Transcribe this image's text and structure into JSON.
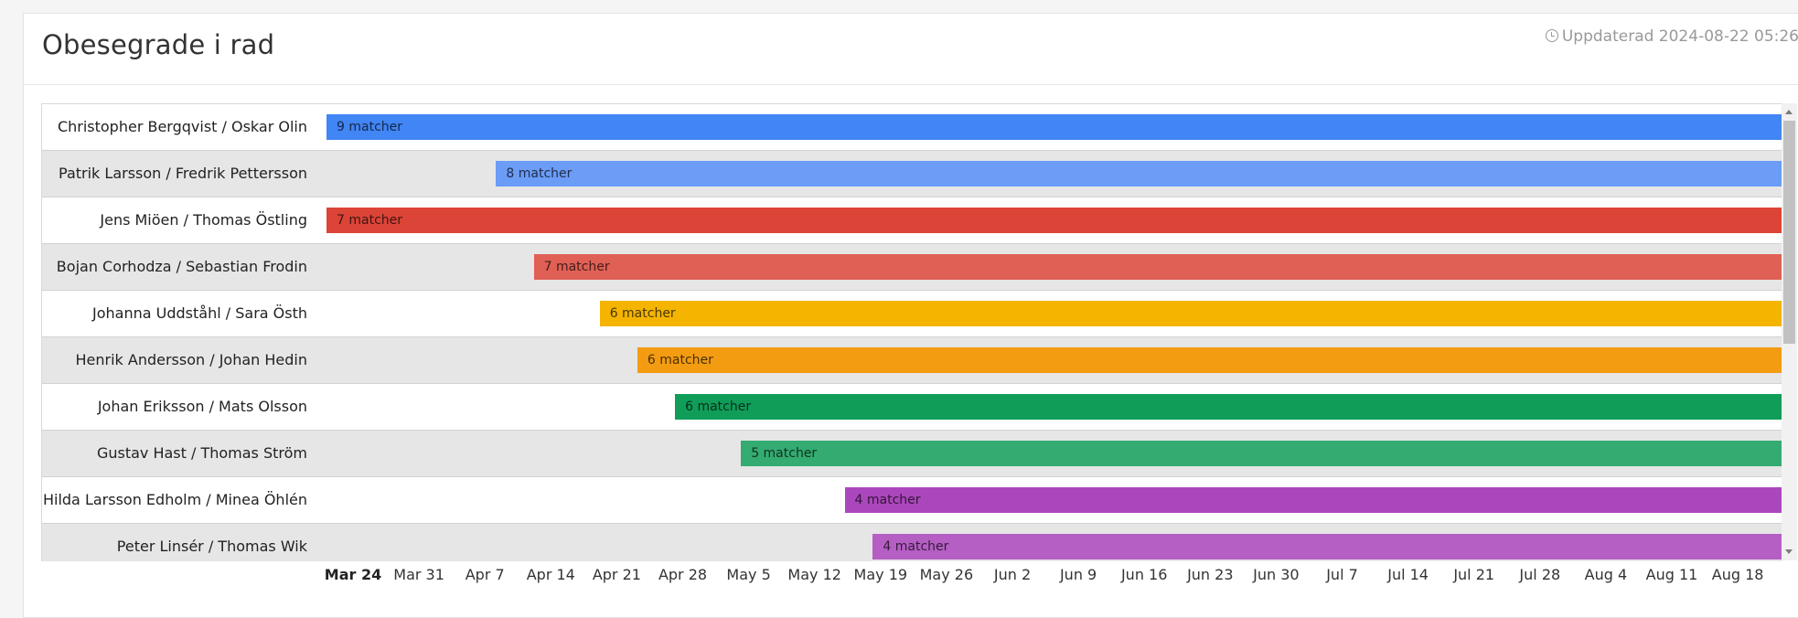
{
  "header": {
    "title": "Obesegrade i rad",
    "updated_icon": "clock-icon",
    "updated_text": "Uppdaterad 2024-08-22 05:26"
  },
  "rows": [
    {
      "label": "Christopher Bergqvist / Oskar Olin",
      "bar_label": "9 matcher",
      "streak": 9,
      "start_date": "2024-03-24",
      "color": "#4285f4"
    },
    {
      "label": "Patrik Larsson / Fredrik Pettersson",
      "bar_label": "8 matcher",
      "streak": 8,
      "start_date": "2024-04-11",
      "color": "#6b9cf6"
    },
    {
      "label": "Jens Miöen / Thomas Östling",
      "bar_label": "7 matcher",
      "streak": 7,
      "start_date": "2024-03-24",
      "color": "#db4437"
    },
    {
      "label": "Bojan Corhodza / Sebastian Frodin",
      "bar_label": "7 matcher",
      "streak": 7,
      "start_date": "2024-04-15",
      "color": "#e06055"
    },
    {
      "label": "Johanna Uddståhl / Sara Östh",
      "bar_label": "6 matcher",
      "streak": 6,
      "start_date": "2024-04-22",
      "color": "#f4b400"
    },
    {
      "label": "Henrik Andersson / Johan Hedin",
      "bar_label": "6 matcher",
      "streak": 6,
      "start_date": "2024-04-26",
      "color": "#f39c12"
    },
    {
      "label": "Johan Eriksson / Mats Olsson",
      "bar_label": "6 matcher",
      "streak": 6,
      "start_date": "2024-04-30",
      "color": "#0f9d58"
    },
    {
      "label": "Gustav Hast / Thomas Ström",
      "bar_label": "5 matcher",
      "streak": 5,
      "start_date": "2024-05-07",
      "color": "#33ab71"
    },
    {
      "label": "Hilda Larsson Edholm / Minea Öhlén",
      "bar_label": "4 matcher",
      "streak": 4,
      "start_date": "2024-05-18",
      "color": "#ab47bc"
    },
    {
      "label": "Peter Linsér / Thomas Wik",
      "bar_label": "4 matcher",
      "streak": 4,
      "start_date": "2024-05-21",
      "color": "#b55ec4"
    }
  ],
  "axis": {
    "ticks": [
      {
        "label": "Mar 24",
        "date": "2024-03-24",
        "bold": true
      },
      {
        "label": "Mar 31",
        "date": "2024-03-31",
        "bold": false
      },
      {
        "label": "Apr 7",
        "date": "2024-04-07",
        "bold": false
      },
      {
        "label": "Apr 14",
        "date": "2024-04-14",
        "bold": false
      },
      {
        "label": "Apr 21",
        "date": "2024-04-21",
        "bold": false
      },
      {
        "label": "Apr 28",
        "date": "2024-04-28",
        "bold": false
      },
      {
        "label": "May 5",
        "date": "2024-05-05",
        "bold": false
      },
      {
        "label": "May 12",
        "date": "2024-05-12",
        "bold": false
      },
      {
        "label": "May 19",
        "date": "2024-05-19",
        "bold": false
      },
      {
        "label": "May 26",
        "date": "2024-05-26",
        "bold": false
      },
      {
        "label": "Jun 2",
        "date": "2024-06-02",
        "bold": false
      },
      {
        "label": "Jun 9",
        "date": "2024-06-09",
        "bold": false
      },
      {
        "label": "Jun 16",
        "date": "2024-06-16",
        "bold": false
      },
      {
        "label": "Jun 23",
        "date": "2024-06-23",
        "bold": false
      },
      {
        "label": "Jun 30",
        "date": "2024-06-30",
        "bold": false
      },
      {
        "label": "Jul 7",
        "date": "2024-07-07",
        "bold": false
      },
      {
        "label": "Jul 14",
        "date": "2024-07-14",
        "bold": false
      },
      {
        "label": "Jul 21",
        "date": "2024-07-21",
        "bold": false
      },
      {
        "label": "Jul 28",
        "date": "2024-07-28",
        "bold": false
      },
      {
        "label": "Aug 4",
        "date": "2024-08-04",
        "bold": false
      },
      {
        "label": "Aug 11",
        "date": "2024-08-11",
        "bold": false
      },
      {
        "label": "Aug 18",
        "date": "2024-08-18",
        "bold": false
      }
    ]
  }
}
